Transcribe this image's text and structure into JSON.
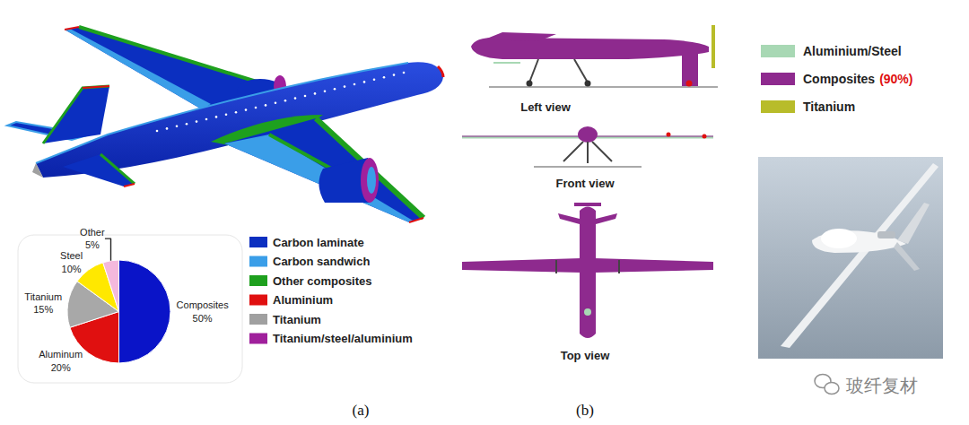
{
  "chart_data": {
    "type": "pie",
    "categories": [
      "Composites",
      "Aluminum",
      "Titanium",
      "Steel",
      "Other"
    ],
    "values": [
      50,
      20,
      15,
      10,
      5
    ],
    "value_labels": [
      "50%",
      "20%",
      "15%",
      "10%",
      "5%"
    ],
    "colors": [
      "#0a14c8",
      "#e01010",
      "#a8a8a8",
      "#ffe800",
      "#f4b8dc"
    ]
  },
  "panels": {
    "a": {
      "label": "(a)",
      "legend": [
        {
          "name": "Carbon laminate",
          "color": "#0b2fc0"
        },
        {
          "name": "Carbon sandwich",
          "color": "#3a9ee8"
        },
        {
          "name": "Other composites",
          "color": "#1ea01e"
        },
        {
          "name": "Aluminium",
          "color": "#e01010"
        },
        {
          "name": "Titanium",
          "color": "#a0a0a0"
        },
        {
          "name": "Titanium/steel/aluminium",
          "color": "#a0209c"
        }
      ]
    },
    "b": {
      "label": "(b)",
      "views": [
        "Left view",
        "Front view",
        "Top view"
      ],
      "legend": [
        {
          "name": "Aluminium/Steel",
          "color": "#a8d8b4"
        },
        {
          "name": "Composites",
          "share_label": "(90%)",
          "color": "#8e2a8e"
        },
        {
          "name": "Titanium",
          "color": "#b8bc2a"
        }
      ]
    }
  },
  "watermark": "玻纤复材"
}
